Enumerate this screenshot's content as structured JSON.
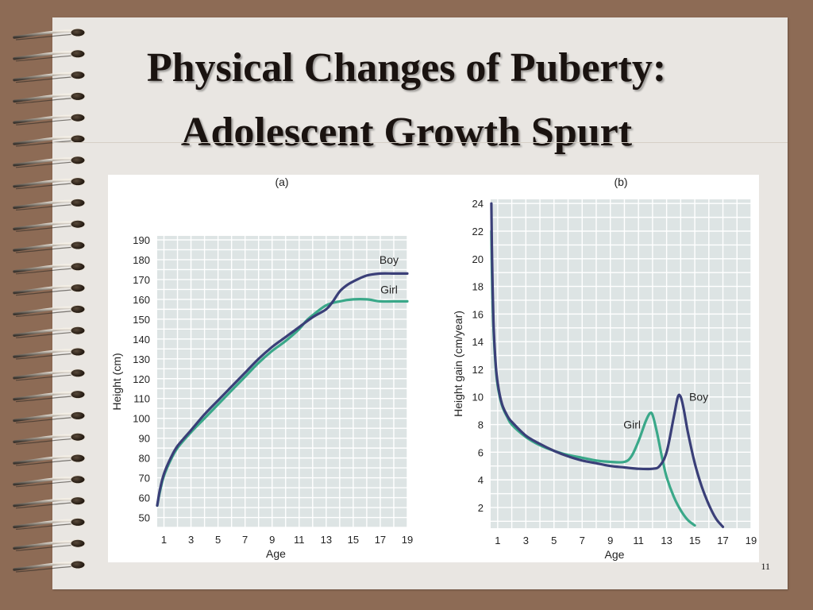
{
  "slide": {
    "title_line1": "Physical Changes of Puberty:",
    "title_line2": "Adolescent Growth Spurt",
    "page_number": "11"
  },
  "colors": {
    "boy": "#3a3f78",
    "girl": "#3aa889",
    "plot_bg": "#dde4e4",
    "grid": "#ffffff"
  },
  "icons": [
    "spiral-ring-icon"
  ],
  "chart_data": [
    {
      "type": "line",
      "panel_label": "(a)",
      "xlabel": "Age",
      "ylabel": "Height (cm)",
      "xlim": [
        0.5,
        19
      ],
      "ylim": [
        45,
        192
      ],
      "x_ticks": [
        1,
        3,
        5,
        7,
        9,
        11,
        13,
        15,
        17,
        19
      ],
      "y_ticks": [
        50,
        60,
        70,
        80,
        90,
        100,
        110,
        120,
        130,
        140,
        150,
        160,
        170,
        180,
        190
      ],
      "grid": true,
      "series": [
        {
          "name": "Boy",
          "color": "#3a3f78",
          "x": [
            0.5,
            0.7,
            1,
            1.5,
            2,
            3,
            4,
            5,
            6,
            7,
            8,
            9,
            10,
            11,
            12,
            13,
            13.5,
            14,
            14.5,
            15,
            16,
            17,
            18,
            19
          ],
          "y": [
            56,
            64,
            72,
            80,
            86,
            94,
            102,
            109,
            116,
            123,
            130,
            136,
            141,
            146,
            151,
            155,
            159,
            164,
            167,
            169,
            172,
            173,
            173,
            173
          ]
        },
        {
          "name": "Girl",
          "color": "#3aa889",
          "x": [
            0.5,
            0.7,
            1,
            1.5,
            2,
            3,
            4,
            5,
            6,
            7,
            8,
            9,
            10,
            11,
            11.5,
            12,
            13,
            14,
            15,
            16,
            17,
            18,
            19
          ],
          "y": [
            56,
            63,
            71,
            79,
            85,
            93,
            100,
            107,
            114,
            121,
            128,
            134,
            139,
            145,
            149,
            152,
            157,
            159,
            160,
            160,
            159,
            159,
            159
          ]
        }
      ]
    },
    {
      "type": "line",
      "panel_label": "(b)",
      "xlabel": "Age",
      "ylabel": "Height gain (cm/year)",
      "xlim": [
        0.5,
        19
      ],
      "ylim": [
        0.5,
        24.3
      ],
      "x_ticks": [
        1,
        3,
        5,
        7,
        9,
        11,
        13,
        15,
        17,
        19
      ],
      "y_ticks": [
        2,
        4,
        6,
        8,
        10,
        12,
        14,
        16,
        18,
        20,
        22,
        24
      ],
      "grid": true,
      "series": [
        {
          "name": "Boy",
          "color": "#3a3f78",
          "x": [
            0.55,
            0.6,
            0.7,
            0.85,
            1,
            1.3,
            1.7,
            2,
            3,
            4,
            5,
            6,
            7,
            8,
            9,
            10,
            11,
            12,
            12.5,
            13,
            13.5,
            13.8,
            14,
            14.2,
            14.5,
            15,
            15.5,
            16,
            16.5,
            17
          ],
          "y": [
            24,
            20,
            15.5,
            12.5,
            11,
            9.5,
            8.6,
            8.2,
            7.2,
            6.6,
            6.1,
            5.7,
            5.4,
            5.2,
            5.0,
            4.9,
            4.8,
            4.8,
            5.0,
            6.0,
            8.5,
            10.0,
            10.0,
            9.2,
            7.5,
            5.2,
            3.5,
            2.2,
            1.2,
            0.6
          ]
        },
        {
          "name": "Girl",
          "color": "#3aa889",
          "x": [
            0.55,
            0.6,
            0.7,
            0.85,
            1,
            1.3,
            1.7,
            2,
            3,
            4,
            5,
            6,
            7,
            8,
            9,
            10,
            10.5,
            11,
            11.5,
            11.8,
            12,
            12.3,
            12.7,
            13,
            13.5,
            14,
            14.5,
            15
          ],
          "y": [
            22,
            18.5,
            15,
            12.3,
            10.8,
            9.4,
            8.5,
            8.0,
            7.1,
            6.5,
            6.1,
            5.8,
            5.6,
            5.4,
            5.3,
            5.3,
            5.7,
            6.8,
            8.2,
            8.8,
            8.7,
            7.5,
            5.5,
            4.2,
            2.8,
            1.8,
            1.1,
            0.7
          ]
        }
      ]
    }
  ]
}
